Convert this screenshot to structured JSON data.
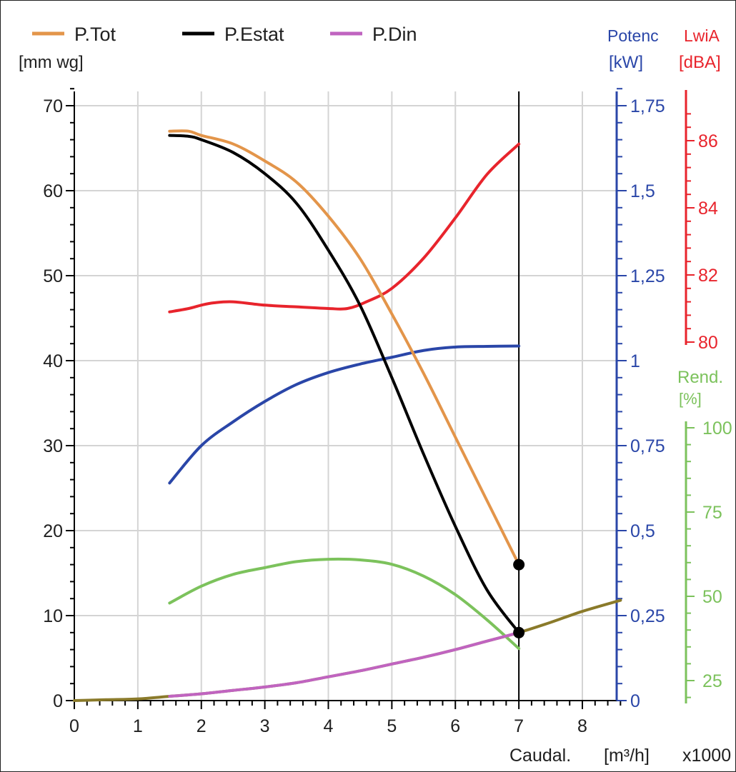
{
  "chart_data": {
    "type": "line",
    "legend": {
      "placement": "top-left",
      "entries": [
        {
          "label": "P.Tot",
          "color": "#E3954A"
        },
        {
          "label": "P.Estat",
          "color": "#000000"
        },
        {
          "label": "P.Din",
          "color": "#C064C0"
        }
      ]
    },
    "grid": true,
    "x_axis": {
      "label": "Caudal.",
      "unit": "[m³/h]",
      "multiplier": "x1000",
      "range": [
        0,
        8.5
      ],
      "ticks": [
        "0",
        "1",
        "2",
        "3",
        "4",
        "5",
        "6",
        "7",
        "8"
      ]
    },
    "axes": {
      "pressure": {
        "unit": "[mm wg]",
        "range": [
          0,
          72
        ],
        "ticks": [
          "0",
          "10",
          "20",
          "30",
          "40",
          "50",
          "60",
          "70"
        ],
        "color": "#000000"
      },
      "power": {
        "label": "Potenc",
        "unit": "[kW]",
        "range": [
          0,
          1.8
        ],
        "ticks": [
          "0",
          "0,25",
          "0,5",
          "0,75",
          "1",
          "1,25",
          "1,5",
          "1,75"
        ],
        "color": "#2A46A8"
      },
      "sound": {
        "label": "LwiA",
        "unit": "[dBA]",
        "range": [
          80,
          87
        ],
        "ticks": [
          "80",
          "82",
          "84",
          "86"
        ],
        "color": "#E8242C"
      },
      "efficiency": {
        "label": "Rend.",
        "unit": "[%]",
        "range": [
          20,
          100
        ],
        "ticks": [
          "25",
          "50",
          "75",
          "100"
        ],
        "color": "#7CC25C"
      }
    },
    "vertical_marker": {
      "x": 7.0
    },
    "series": [
      {
        "name": "P.Tot",
        "axis": "pressure",
        "color": "#E3954A",
        "x": [
          1.5,
          1.8,
          2.0,
          2.5,
          3.0,
          3.5,
          4.0,
          4.5,
          5.0,
          5.5,
          6.0,
          6.5,
          7.0
        ],
        "y": [
          67,
          67,
          66.5,
          65.5,
          63.5,
          61,
          57,
          52,
          45.5,
          38.5,
          31,
          23.5,
          16
        ]
      },
      {
        "name": "P.Estat",
        "axis": "pressure",
        "color": "#000000",
        "x": [
          1.5,
          1.8,
          2.0,
          2.5,
          3.0,
          3.5,
          4.0,
          4.5,
          5.0,
          5.5,
          6.0,
          6.5,
          7.0
        ],
        "y": [
          66.5,
          66.4,
          66,
          64.5,
          62,
          58.5,
          53,
          46.5,
          38,
          29,
          20.5,
          13,
          8
        ]
      },
      {
        "name": "P.Din",
        "axis": "pressure",
        "color": "#C064C0",
        "x": [
          1.5,
          2.0,
          2.5,
          3.0,
          3.5,
          4.0,
          4.5,
          5.0,
          5.5,
          6.0,
          6.5,
          7.0
        ],
        "y": [
          0.5,
          0.8,
          1.2,
          1.6,
          2.1,
          2.8,
          3.5,
          4.3,
          5.1,
          6.0,
          7.0,
          8.0
        ]
      },
      {
        "axis": "pressure",
        "color": "#8A7A2A",
        "x": [
          0,
          0.5,
          1.0,
          1.5,
          2.0,
          2.5,
          3.0,
          3.5,
          4.0,
          4.5,
          5.0,
          5.5,
          6.0,
          6.5,
          7.0,
          7.5,
          8.0,
          8.6
        ],
        "y": [
          0,
          0.1,
          0.2,
          0.5,
          0.8,
          1.2,
          1.6,
          2.1,
          2.8,
          3.5,
          4.3,
          5.1,
          6.0,
          7.0,
          8.0,
          9.2,
          10.5,
          11.8
        ]
      },
      {
        "axis": "sound",
        "color": "#E8242C",
        "x": [
          1.5,
          1.8,
          2.0,
          2.2,
          2.5,
          3.0,
          3.5,
          4.0,
          4.3,
          4.6,
          5.0,
          5.5,
          6.0,
          6.5,
          7.0
        ],
        "y": [
          80.9,
          81.0,
          81.1,
          81.17,
          81.2,
          81.1,
          81.05,
          81.0,
          81.0,
          81.2,
          81.6,
          82.5,
          83.7,
          85.0,
          85.9
        ]
      },
      {
        "axis": "power",
        "color": "#2A46A8",
        "x": [
          1.5,
          2.0,
          2.5,
          3.0,
          3.5,
          4.0,
          4.5,
          5.0,
          5.5,
          6.0,
          6.5,
          7.0
        ],
        "y": [
          0.64,
          0.75,
          0.82,
          0.88,
          0.93,
          0.965,
          0.99,
          1.01,
          1.03,
          1.04,
          1.042,
          1.043
        ]
      },
      {
        "axis": "efficiency",
        "color": "#7CC25C",
        "x": [
          1.5,
          2.0,
          2.5,
          3.0,
          3.5,
          4.0,
          4.5,
          5.0,
          5.5,
          6.0,
          6.5,
          7.0
        ],
        "y": [
          48,
          53,
          56.5,
          58.5,
          60.3,
          61,
          60.8,
          59.5,
          56,
          50.5,
          43,
          34.5
        ]
      }
    ],
    "markers": [
      {
        "series": "P.Tot",
        "x": 7.0,
        "y": 16
      },
      {
        "series": "P.Estat",
        "x": 7.0,
        "y": 8
      }
    ]
  }
}
